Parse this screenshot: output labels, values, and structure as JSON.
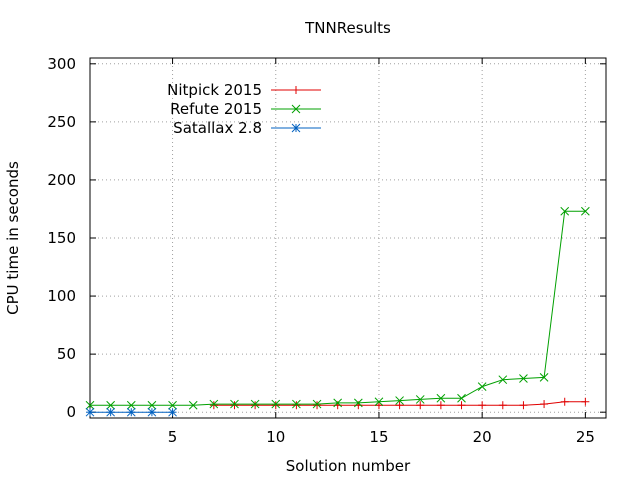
{
  "chart_data": {
    "type": "line",
    "title": "TNNResults",
    "xlabel": "Solution number",
    "ylabel": "CPU time in seconds",
    "xlim": [
      1,
      26
    ],
    "ylim": [
      -5,
      305
    ],
    "xticks": [
      5,
      10,
      15,
      20,
      25
    ],
    "yticks": [
      0,
      50,
      100,
      150,
      200,
      250,
      300
    ],
    "grid": true,
    "legend_position": "top-left",
    "series": [
      {
        "name": "Nitpick 2015",
        "color": "#e00000",
        "marker": "plus",
        "x": [
          7,
          8,
          9,
          10,
          11,
          12,
          13,
          14,
          15,
          16,
          17,
          18,
          19,
          20,
          21,
          22,
          23,
          24,
          25
        ],
        "y": [
          6,
          6,
          6,
          6,
          6,
          6,
          6,
          6,
          6,
          6,
          6,
          6,
          6,
          6,
          6,
          6,
          7,
          9,
          9
        ]
      },
      {
        "name": "Refute 2015",
        "color": "#00a000",
        "marker": "cross",
        "x": [
          1,
          2,
          3,
          4,
          5,
          6,
          7,
          8,
          9,
          10,
          11,
          12,
          13,
          14,
          15,
          16,
          17,
          18,
          19,
          20,
          21,
          22,
          23,
          24,
          25
        ],
        "y": [
          6,
          6,
          6,
          6,
          6,
          6,
          7,
          7,
          7,
          7,
          7,
          7,
          8,
          8,
          9,
          10,
          11,
          12,
          12,
          22,
          28,
          29,
          30,
          173,
          173
        ]
      },
      {
        "name": "Satallax 2.8",
        "color": "#0060c0",
        "marker": "star",
        "x": [
          1,
          2,
          3,
          4,
          5
        ],
        "y": [
          0,
          0,
          0,
          0,
          0
        ]
      }
    ]
  }
}
